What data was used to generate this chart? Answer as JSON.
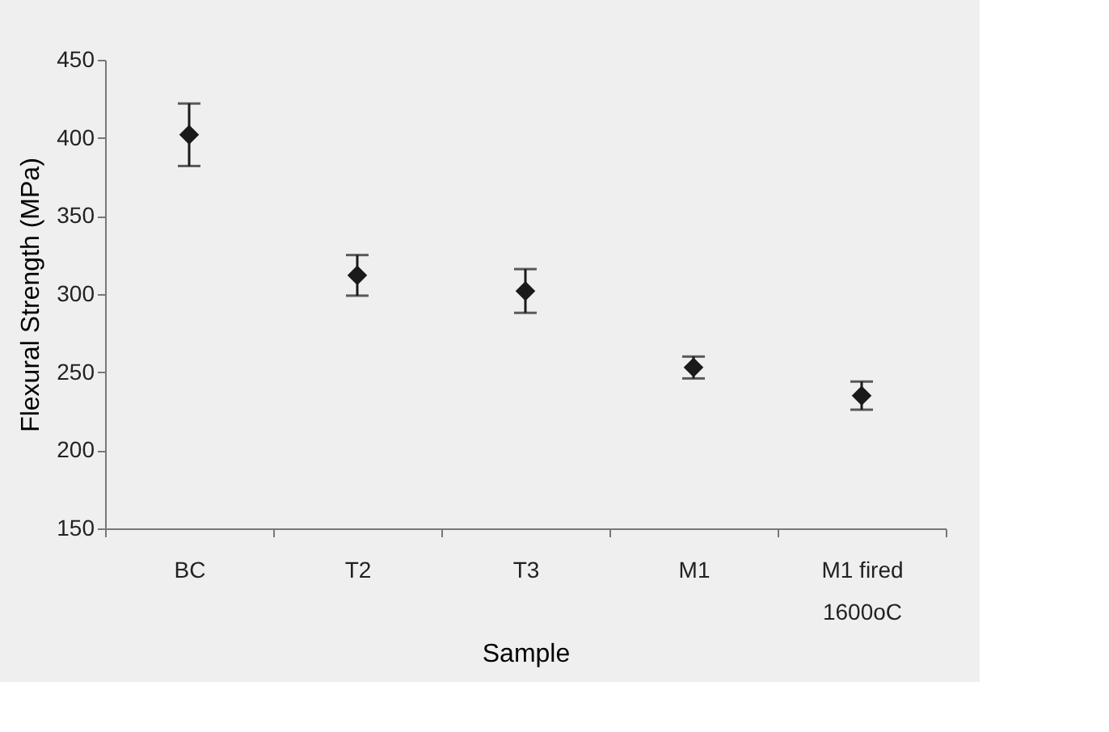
{
  "chart_data": {
    "type": "scatter",
    "xlabel": "Sample",
    "ylabel": "Flexural Strength (MPa)",
    "categories": [
      "BC",
      "T2",
      "T3",
      "M1",
      "M1 fired\n1600oC"
    ],
    "values": [
      402,
      312,
      302,
      253,
      235
    ],
    "errors": [
      20,
      13,
      14,
      7,
      9
    ],
    "color": "#1a1a1a",
    "marker": "diamond",
    "ylim": [
      150,
      450
    ],
    "yticks": [
      150,
      200,
      250,
      300,
      350,
      400,
      450
    ],
    "grid": false
  }
}
